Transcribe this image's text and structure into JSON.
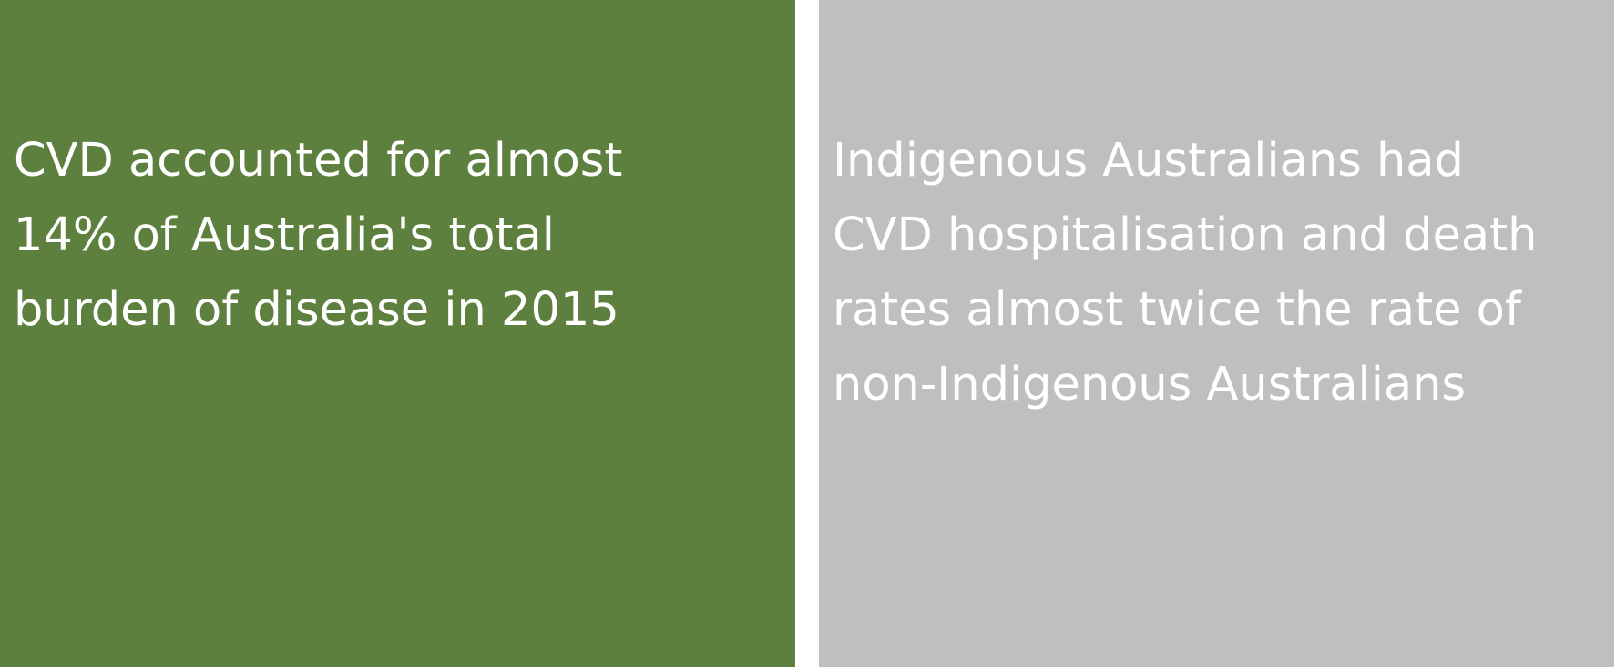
{
  "panels": [
    {
      "lines": [
        "CVD accounted for almost",
        "14% of Australia's total",
        "burden of disease in 2015"
      ],
      "background_color": "#5e803e",
      "text_color": "#ffffff"
    },
    {
      "lines": [
        "Indigenous Australians had",
        "CVD hospitalisation and death",
        "rates almost twice the rate of",
        "non-Indigenous Australians"
      ],
      "background_color": "#bfbfbf",
      "text_color": "#ffffff"
    }
  ]
}
